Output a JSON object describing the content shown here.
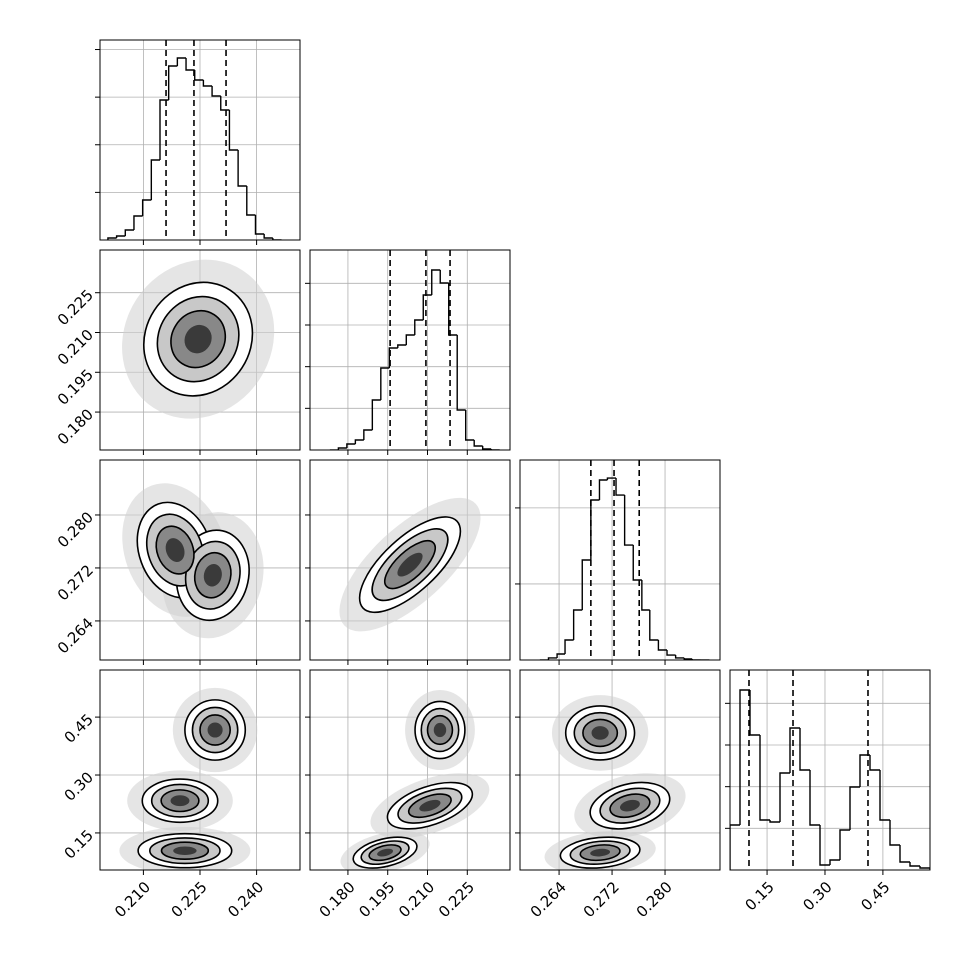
{
  "chart_data": {
    "type": "corner",
    "grid": true,
    "line_color": "#000000",
    "grid_color": "#b0b0b0",
    "params": [
      {
        "lim": [
          0.1985,
          0.2515
        ],
        "ticks": [
          {
            "value": 0.21,
            "label": "0.210"
          },
          0.225,
          {
            "value": 0.24,
            "label": "0.240"
          }
        ],
        "hist": {
          "bins": [
            0.2006,
            0.2029,
            0.2052,
            0.2075,
            0.2098,
            0.2121,
            0.2144,
            0.2167,
            0.219,
            0.2213,
            0.2236,
            0.2259,
            0.2282,
            0.2305,
            0.2328,
            0.2351,
            0.2374,
            0.2397,
            0.242,
            0.2443,
            0.2466
          ],
          "counts": [
            42,
            84,
            210,
            504,
            840,
            1680,
            2940,
            3654,
            3822,
            3570,
            3360,
            3234,
            3024,
            2730,
            1890,
            1134,
            525,
            126,
            42,
            0
          ],
          "ylim": [
            0,
            4200
          ],
          "yticks": [
            1000,
            2000,
            3000,
            4000
          ]
        },
        "quantiles": [
          0.216,
          0.2234,
          0.2319
        ],
        "joint": []
      },
      {
        "lim": [
          0.1657,
          0.2411
        ],
        "ticks": [
          {
            "value": 0.18,
            "label": "0.180"
          },
          0.195,
          {
            "value": 0.21,
            "label": "0.210"
          },
          0.225
        ],
        "hist": {
          "bins": [
            0.1732,
            0.1764,
            0.1796,
            0.1828,
            0.186,
            0.1892,
            0.1924,
            0.1956,
            0.1988,
            0.202,
            0.2052,
            0.2084,
            0.2116,
            0.2148,
            0.218,
            0.2212,
            0.2244,
            0.2276,
            0.2308,
            0.234,
            0.2372
          ],
          "counts": [
            0,
            48,
            144,
            240,
            480,
            1200,
            1968,
            2448,
            2520,
            2760,
            3120,
            3720,
            4320,
            4008,
            2760,
            960,
            240,
            96,
            24,
            0
          ],
          "ylim": [
            0,
            4800
          ],
          "yticks": [
            1000,
            2000,
            3000,
            4000
          ]
        },
        "quantiles": [
          0.1959,
          0.2094,
          0.2185
        ],
        "joint": [
          [
            {
              "x": 0.2245,
              "y": 0.2075,
              "sx": 0.0072,
              "sy": 0.0107,
              "rho": 0.1
            }
          ]
        ]
      },
      {
        "lim": [
          0.2581,
          0.2883
        ],
        "ticks": [
          0.264,
          0.272,
          {
            "value": 0.28,
            "label": "0.280"
          }
        ],
        "hist": {
          "bins": [
            0.2611,
            0.2624,
            0.2637,
            0.2649,
            0.2662,
            0.2675,
            0.2688,
            0.2701,
            0.2713,
            0.2726,
            0.2739,
            0.2752,
            0.2765,
            0.2777,
            0.279,
            0.2803,
            0.2816,
            0.2829,
            0.2841,
            0.2854,
            0.2867
          ],
          "counts": [
            0,
            53,
            158,
            526,
            1315,
            2630,
            4208,
            4734,
            4786,
            4339,
            3024,
            2104,
            1315,
            526,
            263,
            131,
            53,
            26,
            0,
            0
          ],
          "ylim": [
            0,
            5260
          ],
          "yticks": [
            2000,
            4000
          ]
        },
        "quantiles": [
          0.2688,
          0.2723,
          0.2761
        ],
        "joint": [
          [
            {
              "x": 0.2184,
              "y": 0.2747,
              "sx": 0.005,
              "sy": 0.0036,
              "rho": -0.2
            },
            {
              "x": 0.2284,
              "y": 0.2709,
              "sx": 0.0048,
              "sy": 0.0034,
              "rho": 0.1
            }
          ],
          [
            {
              "x": 0.2034,
              "y": 0.2725,
              "sx": 0.0095,
              "sy": 0.0036,
              "rho": 0.7
            }
          ]
        ]
      },
      {
        "lim": [
          0.054,
          0.572
        ],
        "ticks": [
          {
            "value": 0.15,
            "label": "0.15"
          },
          {
            "value": 0.3,
            "label": "0.30"
          },
          0.45
        ],
        "hist": {
          "bins": [
            0.054,
            0.0799,
            0.1058,
            0.1317,
            0.1576,
            0.1835,
            0.2094,
            0.2353,
            0.2612,
            0.2871,
            0.313,
            0.3389,
            0.3648,
            0.3907,
            0.4166,
            0.4425,
            0.4684,
            0.4943,
            0.5202,
            0.5461,
            0.572
          ],
          "counts": [
            1080,
            4320,
            3240,
            1200,
            1152,
            2328,
            3408,
            2400,
            1080,
            120,
            240,
            960,
            1992,
            2760,
            2400,
            1200,
            600,
            192,
            96,
            48
          ],
          "ylim": [
            0,
            4800
          ],
          "yticks": [
            1000,
            2000,
            3000,
            4000
          ]
        },
        "quantiles": [
          0.1032,
          0.2172,
          0.4114
        ],
        "joint": [
          [
            {
              "x": 0.229,
              "y": 0.4166,
              "sx": 0.004,
              "sy": 0.039,
              "rho": 0.0
            },
            {
              "x": 0.2197,
              "y": 0.2335,
              "sx": 0.005,
              "sy": 0.028,
              "rho": 0.0
            },
            {
              "x": 0.221,
              "y": 0.104,
              "sx": 0.0062,
              "sy": 0.022,
              "rho": 0.0
            }
          ],
          [
            {
              "x": 0.2147,
              "y": 0.4166,
              "sx": 0.0047,
              "sy": 0.037,
              "rho": 0.0
            },
            {
              "x": 0.2109,
              "y": 0.2206,
              "sx": 0.008,
              "sy": 0.03,
              "rho": 0.5
            },
            {
              "x": 0.194,
              "y": 0.099,
              "sx": 0.006,
              "sy": 0.02,
              "rho": 0.4
            }
          ],
          [
            {
              "x": 0.2702,
              "y": 0.409,
              "sx": 0.0026,
              "sy": 0.035,
              "rho": 0.0
            },
            {
              "x": 0.2747,
              "y": 0.2206,
              "sx": 0.003,
              "sy": 0.03,
              "rho": 0.3
            },
            {
              "x": 0.2702,
              "y": 0.099,
              "sx": 0.003,
              "sy": 0.02,
              "rho": 0.2
            }
          ]
        ]
      }
    ]
  }
}
